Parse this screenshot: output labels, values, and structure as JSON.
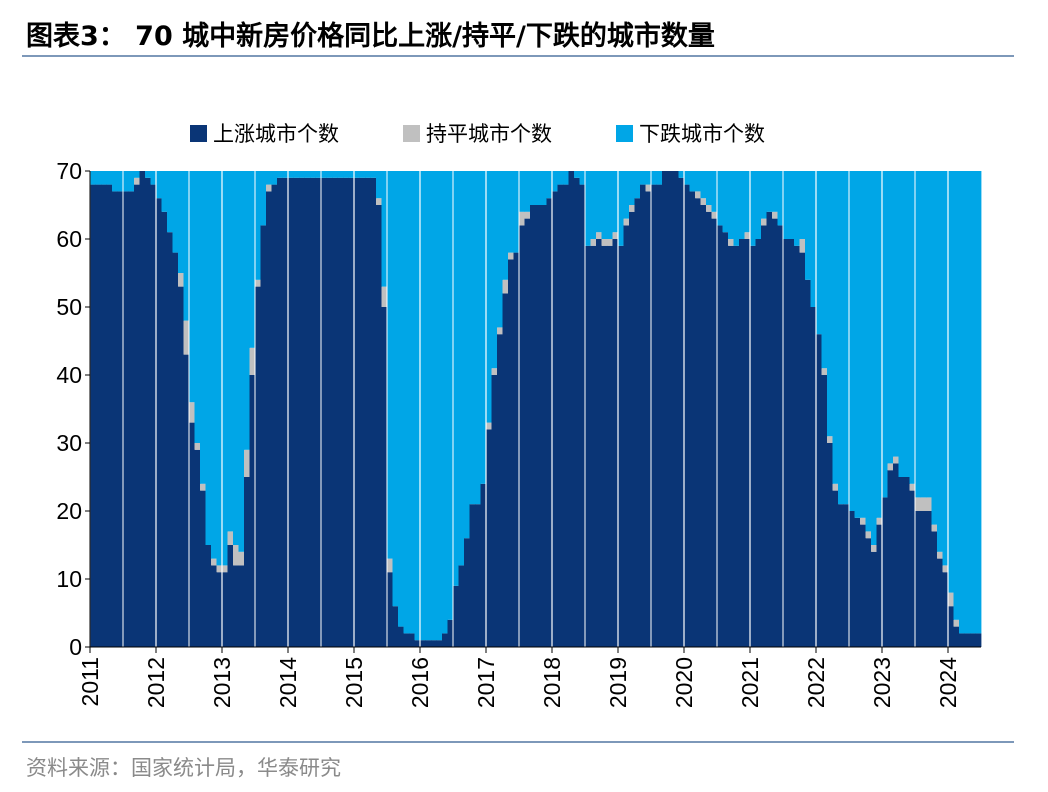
{
  "title": "图表3：  70 城中新房价格同比上涨/持平/下跌的城市数量",
  "source": "资料来源：国家统计局，华泰研究",
  "colors": {
    "up": "#0a3576",
    "flat": "#c0c0c0",
    "down": "#00a6e7"
  },
  "chart_data": {
    "type": "bar",
    "stacked": true,
    "title": "",
    "xlabel": "",
    "ylabel": "",
    "ylim": [
      0,
      70
    ],
    "yticks": [
      "0",
      "10",
      "20",
      "30",
      "40",
      "50",
      "60",
      "70"
    ],
    "xtick_labels": [
      "2011",
      "2012",
      "2013",
      "2014",
      "2015",
      "2016",
      "2017",
      "2018",
      "2019",
      "2020",
      "2021",
      "2022",
      "2023",
      "2024"
    ],
    "legend_position": "top",
    "x_start": "2011-01",
    "x_end": "2024-09",
    "series": [
      {
        "name": "上涨城市个数",
        "values": [
          68,
          68,
          68,
          68,
          67,
          67,
          67,
          67,
          68,
          70,
          69,
          68,
          66,
          64,
          61,
          58,
          53,
          43,
          33,
          29,
          23,
          15,
          12,
          11,
          11,
          15,
          12,
          12,
          25,
          40,
          53,
          62,
          67,
          68,
          69,
          69,
          69,
          69,
          69,
          69,
          69,
          69,
          69,
          69,
          69,
          69,
          69,
          69,
          69,
          69,
          69,
          69,
          65,
          50,
          11,
          6,
          3,
          2,
          2,
          1,
          1,
          1,
          1,
          1,
          2,
          4,
          9,
          12,
          16,
          21,
          21,
          24,
          32,
          40,
          46,
          52,
          57,
          58,
          62,
          63,
          65,
          65,
          65,
          66,
          67,
          68,
          68,
          70,
          69,
          68,
          59,
          59,
          60,
          59,
          59,
          60,
          59,
          62,
          64,
          66,
          68,
          67,
          68,
          68,
          70,
          70,
          70,
          69,
          68,
          67,
          66,
          65,
          64,
          63,
          62,
          61,
          59,
          59,
          60,
          60,
          59,
          60,
          62,
          64,
          63,
          62,
          60,
          60,
          59,
          58,
          54,
          50,
          46,
          40,
          30,
          23,
          21,
          21,
          20,
          19,
          18,
          16,
          14,
          18,
          22,
          26,
          27,
          25,
          25,
          23,
          20,
          20,
          20,
          17,
          13,
          11,
          6,
          3,
          2,
          2,
          2,
          2
        ]
      },
      {
        "name": "持平城市个数",
        "values": [
          0,
          0,
          0,
          0,
          0,
          0,
          0,
          0,
          1,
          0,
          0,
          0,
          0,
          0,
          0,
          0,
          2,
          5,
          3,
          1,
          1,
          0,
          1,
          1,
          1,
          2,
          3,
          2,
          4,
          4,
          1,
          0,
          1,
          0,
          0,
          0,
          0,
          0,
          0,
          0,
          0,
          0,
          0,
          0,
          0,
          0,
          0,
          0,
          0,
          0,
          0,
          0,
          1,
          3,
          2,
          0,
          0,
          0,
          0,
          0,
          0,
          0,
          0,
          0,
          0,
          0,
          0,
          0,
          0,
          0,
          0,
          0,
          1,
          1,
          1,
          2,
          1,
          0,
          2,
          1,
          0,
          0,
          0,
          0,
          0,
          0,
          0,
          0,
          0,
          0,
          0,
          1,
          1,
          1,
          1,
          1,
          0,
          1,
          1,
          0,
          0,
          1,
          0,
          0,
          0,
          0,
          0,
          0,
          0,
          0,
          1,
          1,
          1,
          1,
          0,
          0,
          1,
          0,
          0,
          1,
          0,
          0,
          1,
          0,
          1,
          0,
          0,
          0,
          0,
          2,
          0,
          0,
          0,
          1,
          1,
          1,
          0,
          0,
          0,
          0,
          1,
          1,
          1,
          1,
          0,
          1,
          1,
          0,
          0,
          1,
          2,
          2,
          2,
          1,
          1,
          1,
          2,
          1,
          0,
          0,
          0,
          0
        ]
      },
      {
        "name": "下跌城市个数",
        "values": [
          2,
          2,
          2,
          2,
          3,
          3,
          3,
          3,
          1,
          0,
          1,
          2,
          4,
          6,
          9,
          12,
          15,
          22,
          34,
          40,
          46,
          55,
          57,
          58,
          58,
          53,
          55,
          56,
          41,
          26,
          16,
          8,
          2,
          2,
          1,
          1,
          1,
          1,
          1,
          1,
          1,
          1,
          1,
          1,
          1,
          1,
          1,
          1,
          1,
          1,
          1,
          1,
          4,
          17,
          57,
          64,
          67,
          68,
          68,
          69,
          69,
          69,
          69,
          69,
          68,
          66,
          61,
          58,
          54,
          49,
          49,
          46,
          37,
          29,
          23,
          16,
          12,
          12,
          6,
          6,
          5,
          5,
          5,
          4,
          3,
          2,
          2,
          0,
          1,
          2,
          11,
          10,
          9,
          10,
          10,
          9,
          11,
          7,
          5,
          4,
          2,
          2,
          2,
          2,
          0,
          0,
          0,
          1,
          2,
          3,
          3,
          4,
          5,
          6,
          8,
          9,
          10,
          11,
          10,
          9,
          11,
          10,
          7,
          6,
          6,
          8,
          10,
          10,
          11,
          10,
          16,
          20,
          24,
          29,
          39,
          46,
          49,
          49,
          50,
          51,
          51,
          53,
          55,
          51,
          48,
          43,
          42,
          45,
          45,
          46,
          48,
          48,
          48,
          52,
          56,
          58,
          62,
          66,
          68,
          68,
          68,
          68
        ]
      }
    ]
  }
}
